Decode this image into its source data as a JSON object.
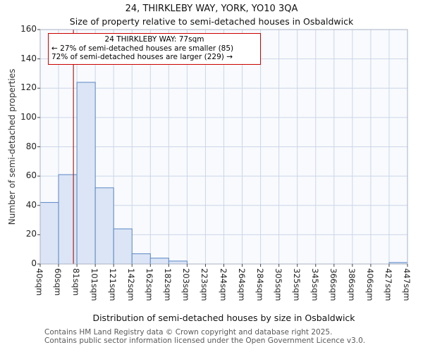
{
  "chart_data": {
    "type": "bar",
    "title": "24, THIRKLEBY WAY, YORK, YO10 3QA",
    "subtitle": "Size of property relative to semi-detached houses in Osbaldwick",
    "xlabel": "Distribution of semi-detached houses by size in Osbaldwick",
    "ylabel": "Number of semi-detached properties",
    "ylim": [
      0,
      160
    ],
    "ytick_step": 20,
    "yticks": [
      0,
      20,
      40,
      60,
      80,
      100,
      120,
      140,
      160
    ],
    "bin_edges": [
      "40sqm",
      "60sqm",
      "81sqm",
      "101sqm",
      "121sqm",
      "142sqm",
      "162sqm",
      "182sqm",
      "203sqm",
      "223sqm",
      "244sqm",
      "264sqm",
      "284sqm",
      "305sqm",
      "325sqm",
      "345sqm",
      "366sqm",
      "386sqm",
      "406sqm",
      "427sqm",
      "447sqm"
    ],
    "values": [
      42,
      61,
      124,
      52,
      24,
      7,
      4,
      2,
      0,
      0,
      0,
      0,
      0,
      0,
      0,
      0,
      0,
      0,
      0,
      1
    ],
    "grid": true,
    "legend": null,
    "marker": {
      "value_sqm": 77,
      "label": "24 THIRKLEBY WAY: 77sqm"
    },
    "annotation": {
      "line1": "24 THIRKLEBY WAY: 77sqm",
      "line2": "← 27% of semi-detached houses are smaller (85)",
      "line3": "72% of semi-detached houses are larger (229) →"
    },
    "colors": {
      "plot_bg": "#f8fafd",
      "grid": "#ccd6e8",
      "bar_fill": "#dbe5f5",
      "bar_stroke": "#5b87c5",
      "marker": "#aa2222",
      "frame": "#a9b2c4",
      "tick": "#444444"
    }
  },
  "footer": {
    "line1": "Contains HM Land Registry data © Crown copyright and database right 2025.",
    "line2": "Contains public sector information licensed under the Open Government Licence v3.0."
  }
}
